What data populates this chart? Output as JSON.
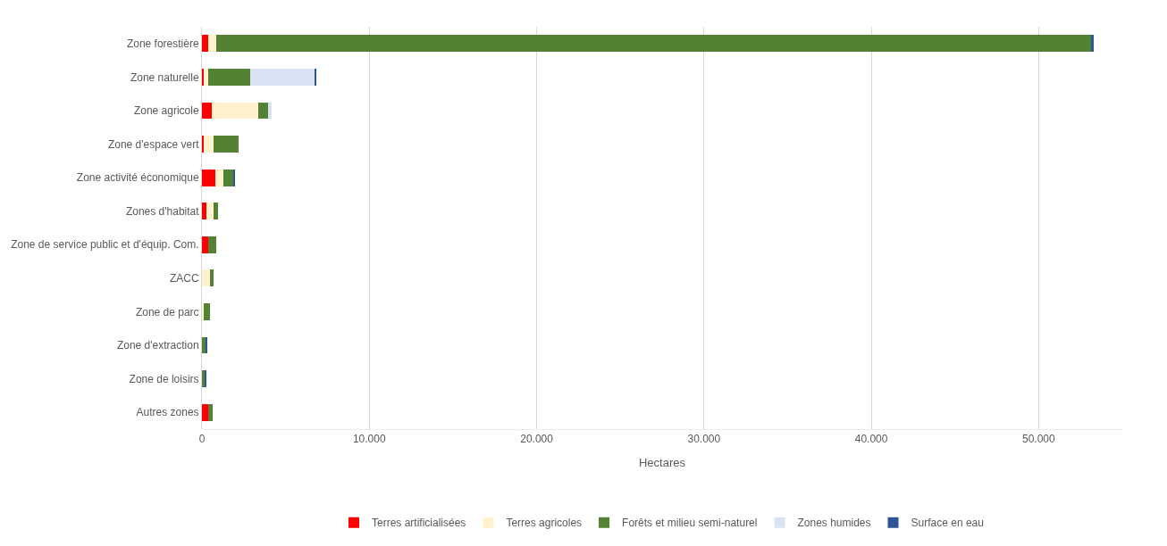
{
  "chart_data": {
    "type": "bar",
    "orientation": "horizontal",
    "stacked": true,
    "xlabel": "Hectares",
    "categories": [
      "Zone forestière",
      "Zone naturelle",
      "Zone agricole",
      "Zone d'espace vert",
      "Zone activité économique",
      "Zones d'habitat",
      "Zone de service public et d'équip. Com.",
      "ZACC",
      "Zone de parc",
      "Zone d'extraction",
      "Zone de loisirs",
      "Autres zones"
    ],
    "series": [
      {
        "name": "Terres artificialisées",
        "color": "#ff0000",
        "values": [
          350,
          80,
          580,
          120,
          800,
          280,
          400,
          0,
          0,
          0,
          0,
          400
        ]
      },
      {
        "name": "Terres agricoles",
        "color": "#fff2cc",
        "values": [
          500,
          300,
          2800,
          580,
          470,
          400,
          0,
          470,
          100,
          0,
          0,
          0
        ]
      },
      {
        "name": "Forêts et milieu semi-naturel",
        "color": "#548235",
        "values": [
          52300,
          2500,
          580,
          1500,
          640,
          290,
          470,
          230,
          400,
          250,
          200,
          230
        ]
      },
      {
        "name": "Zones humides",
        "color": "#dae3f3",
        "values": [
          0,
          3850,
          230,
          0,
          0,
          0,
          0,
          0,
          0,
          0,
          0,
          0
        ]
      },
      {
        "name": "Surface en eau",
        "color": "#2f5597",
        "values": [
          150,
          60,
          0,
          0,
          30,
          0,
          0,
          0,
          0,
          50,
          20,
          0
        ]
      }
    ],
    "xlim": [
      0,
      55000
    ],
    "xticks": [
      {
        "value": 0,
        "label": "0"
      },
      {
        "value": 10000,
        "label": "10.000"
      },
      {
        "value": 20000,
        "label": "20.000"
      },
      {
        "value": 30000,
        "label": "30.000"
      },
      {
        "value": 40000,
        "label": "40.000"
      },
      {
        "value": 50000,
        "label": "50.000"
      }
    ],
    "grid": "x",
    "legend": "bottom"
  }
}
